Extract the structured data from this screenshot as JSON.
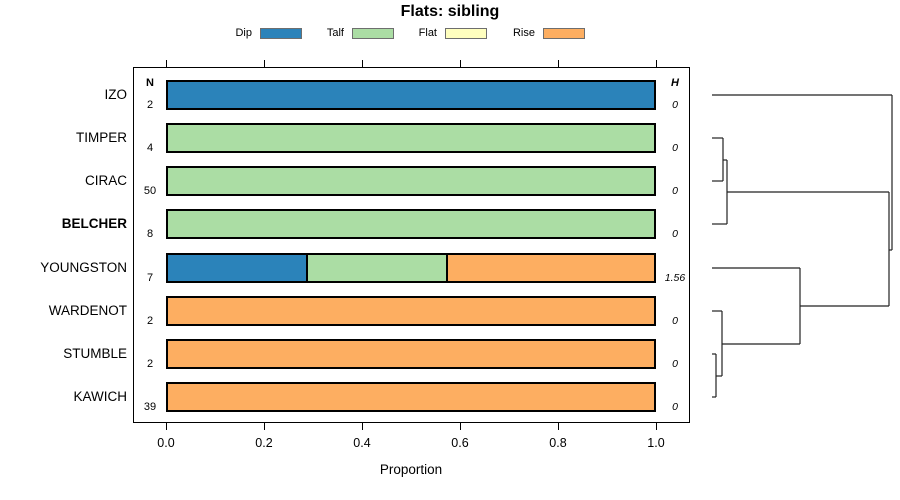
{
  "title": "Flats: sibling",
  "legend": {
    "items": [
      {
        "label": "Dip",
        "color": "#2b83ba"
      },
      {
        "label": "Talf",
        "color": "#abdda4"
      },
      {
        "label": "Flat",
        "color": "#ffffbf"
      },
      {
        "label": "Rise",
        "color": "#fdae61"
      }
    ]
  },
  "columns": {
    "n_header": "N",
    "h_header": "H"
  },
  "axis": {
    "xlabel": "Proportion",
    "xlim": [
      0,
      1
    ],
    "ticks": [
      {
        "label": "0.0",
        "value": 0.0
      },
      {
        "label": "0.2",
        "value": 0.2
      },
      {
        "label": "0.4",
        "value": 0.4
      },
      {
        "label": "0.6",
        "value": 0.6
      },
      {
        "label": "0.8",
        "value": 0.8
      },
      {
        "label": "1.0",
        "value": 1.0
      }
    ]
  },
  "chart_data": {
    "type": "bar",
    "orientation": "horizontal",
    "stacked": true,
    "title": "Flats: sibling",
    "xlabel": "Proportion",
    "xlim": [
      0,
      1
    ],
    "categories": [
      "IZO",
      "TIMPER",
      "CIRAC",
      "BELCHER",
      "YOUNGSTON",
      "WARDENOT",
      "STUMBLE",
      "KAWICH"
    ],
    "bold_categories": [
      "BELCHER"
    ],
    "n_values": [
      2,
      4,
      50,
      8,
      7,
      2,
      2,
      39
    ],
    "h_values": [
      "0",
      "0",
      "0",
      "0",
      "1.56",
      "0",
      "0",
      "0"
    ],
    "series": [
      {
        "name": "Dip",
        "color": "#2b83ba",
        "values": [
          1,
          0,
          0,
          0,
          0.286,
          0,
          0,
          0
        ]
      },
      {
        "name": "Talf",
        "color": "#abdda4",
        "values": [
          0,
          1,
          1,
          1,
          0.286,
          0,
          0,
          0
        ]
      },
      {
        "name": "Flat",
        "color": "#ffffbf",
        "values": [
          0,
          0,
          0,
          0,
          0,
          0,
          0,
          0
        ]
      },
      {
        "name": "Rise",
        "color": "#fdae61",
        "values": [
          0,
          0,
          0,
          0,
          0.428,
          1,
          1,
          1
        ]
      }
    ],
    "bar_border_color": "#000000",
    "legend_position": "top",
    "grid": false
  },
  "dendrogram": {
    "line_color": "#222222",
    "segments": [
      [
        712,
        95,
        892,
        95
      ],
      [
        892,
        95,
        892,
        250
      ],
      [
        889,
        250,
        892,
        250
      ],
      [
        889,
        192,
        889,
        306
      ],
      [
        727,
        192,
        889,
        192
      ],
      [
        727,
        160,
        727,
        224
      ],
      [
        712,
        224,
        727,
        224
      ],
      [
        723,
        160,
        727,
        160
      ],
      [
        723,
        138,
        723,
        181
      ],
      [
        712,
        138,
        723,
        138
      ],
      [
        712,
        181,
        723,
        181
      ],
      [
        800,
        306,
        889,
        306
      ],
      [
        800,
        268,
        800,
        344
      ],
      [
        712,
        268,
        800,
        268
      ],
      [
        722,
        344,
        800,
        344
      ],
      [
        722,
        311,
        722,
        376
      ],
      [
        712,
        311,
        722,
        311
      ],
      [
        716,
        376,
        722,
        376
      ],
      [
        716,
        354,
        716,
        397
      ],
      [
        712,
        354,
        716,
        354
      ],
      [
        712,
        397,
        716,
        397
      ]
    ]
  }
}
